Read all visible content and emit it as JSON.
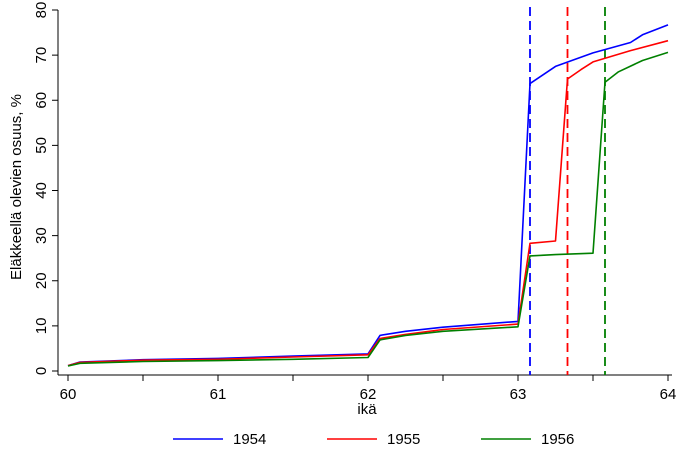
{
  "chart_data": {
    "type": "line",
    "xlabel": "ikä",
    "ylabel": "Eläkkeellä olevien osuus, %",
    "xlim": [
      60,
      64
    ],
    "ylim": [
      0,
      80
    ],
    "x_ticks": [
      60,
      61,
      62,
      63,
      64
    ],
    "y_ticks": [
      0,
      10,
      20,
      30,
      40,
      50,
      60,
      70,
      80
    ],
    "grid": false,
    "legend_position": "bottom",
    "series": [
      {
        "name": "1954",
        "color": "#0000ff",
        "x": [
          60.0,
          60.08,
          60.5,
          61.0,
          61.5,
          62.0,
          62.08,
          62.25,
          62.5,
          63.0,
          63.08,
          63.25,
          63.5,
          63.75,
          63.83,
          64.0
        ],
        "y": [
          1.2,
          2.0,
          2.5,
          2.8,
          3.3,
          3.8,
          7.9,
          8.8,
          9.7,
          11.0,
          63.7,
          67.5,
          70.5,
          72.8,
          74.5,
          76.7
        ]
      },
      {
        "name": "1955",
        "color": "#ff0000",
        "x": [
          60.0,
          60.08,
          60.5,
          61.0,
          61.5,
          62.0,
          62.08,
          62.25,
          62.5,
          63.0,
          63.08,
          63.25,
          63.33,
          63.42,
          63.5,
          63.75,
          64.0
        ],
        "y": [
          1.2,
          1.9,
          2.4,
          2.6,
          3.1,
          3.6,
          7.2,
          8.1,
          9.2,
          10.4,
          28.3,
          28.8,
          64.7,
          66.8,
          68.5,
          71.0,
          73.2
        ]
      },
      {
        "name": "1956",
        "color": "#008000",
        "x": [
          60.0,
          60.08,
          60.5,
          61.0,
          61.5,
          62.0,
          62.08,
          62.25,
          62.5,
          63.0,
          63.08,
          63.25,
          63.5,
          63.58,
          63.67,
          63.83,
          64.0
        ],
        "y": [
          1.1,
          1.7,
          2.1,
          2.3,
          2.6,
          3.0,
          6.9,
          7.9,
          8.8,
          9.8,
          25.5,
          25.8,
          26.1,
          64.0,
          66.3,
          68.8,
          70.6
        ]
      }
    ],
    "vertical_lines": [
      {
        "x": 63.08,
        "color": "#0000ff",
        "style": "dashed"
      },
      {
        "x": 63.33,
        "color": "#ff0000",
        "style": "dashed"
      },
      {
        "x": 63.58,
        "color": "#008000",
        "style": "dashed"
      }
    ]
  }
}
